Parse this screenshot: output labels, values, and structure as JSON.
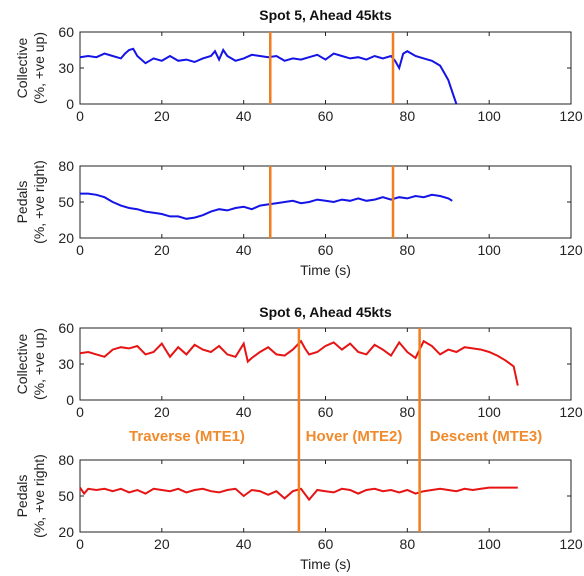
{
  "chart_data": [
    {
      "type": "line",
      "title": "Spot 5, Ahead 45kts",
      "ylabel_lines": [
        "Collective",
        "(%, +ve up)"
      ],
      "xlabel": "",
      "xlim": [
        0,
        120
      ],
      "ylim": [
        0,
        60
      ],
      "xticks": [
        0,
        20,
        40,
        60,
        80,
        100,
        120
      ],
      "yticks": [
        0,
        30,
        60
      ],
      "line_color": "#1414E6",
      "marker_color": "#F07D1E",
      "phase_boundaries": [
        46.5,
        76.5
      ],
      "series": [
        {
          "x": [
            0,
            2,
            4,
            6,
            8,
            10,
            11,
            12,
            13,
            14,
            16,
            18,
            20,
            22,
            24,
            26,
            28,
            30,
            32,
            33,
            34,
            35,
            36,
            38,
            40,
            42,
            44,
            46,
            48,
            50,
            52,
            54,
            56,
            58,
            60,
            62,
            64,
            66,
            68,
            70,
            72,
            74,
            76,
            77,
            78,
            79,
            80,
            82,
            84,
            86,
            88,
            89,
            90,
            91,
            92
          ],
          "y": [
            39,
            40,
            39,
            42,
            40,
            38,
            42,
            45,
            46,
            40,
            34,
            38,
            36,
            40,
            36,
            37,
            35,
            38,
            40,
            44,
            37,
            45,
            40,
            36,
            38,
            41,
            40,
            39,
            40,
            36,
            38,
            37,
            39,
            41,
            37,
            42,
            40,
            38,
            39,
            37,
            40,
            38,
            40,
            36,
            30,
            42,
            44,
            40,
            38,
            36,
            32,
            26,
            20,
            10,
            0
          ]
        }
      ]
    },
    {
      "type": "line",
      "title": "",
      "ylabel_lines": [
        "Pedals",
        "(%, +ve right)"
      ],
      "xlabel": "Time (s)",
      "xlim": [
        0,
        120
      ],
      "ylim": [
        20,
        80
      ],
      "xticks": [
        0,
        20,
        40,
        60,
        80,
        100,
        120
      ],
      "yticks": [
        20,
        50,
        80
      ],
      "line_color": "#1414E6",
      "marker_color": "#F07D1E",
      "phase_boundaries": [
        46.5,
        76.5
      ],
      "series": [
        {
          "x": [
            0,
            2,
            4,
            6,
            8,
            10,
            12,
            14,
            16,
            18,
            20,
            22,
            24,
            26,
            28,
            30,
            32,
            34,
            36,
            38,
            40,
            42,
            44,
            46,
            48,
            50,
            52,
            54,
            56,
            58,
            60,
            62,
            64,
            66,
            68,
            70,
            72,
            74,
            76,
            78,
            80,
            82,
            84,
            86,
            88,
            90,
            91
          ],
          "y": [
            57,
            57,
            56,
            54,
            50,
            47,
            45,
            44,
            42,
            41,
            40,
            38,
            38,
            36,
            37,
            39,
            42,
            44,
            43,
            45,
            46,
            44,
            47,
            48,
            49,
            50,
            51,
            49,
            50,
            52,
            51,
            50,
            52,
            51,
            53,
            51,
            52,
            54,
            52,
            54,
            53,
            55,
            54,
            56,
            55,
            53,
            51
          ]
        }
      ]
    },
    {
      "type": "line",
      "title": "Spot 6, Ahead 45kts",
      "ylabel_lines": [
        "Collective",
        "(%, +ve up)"
      ],
      "xlabel": "",
      "xlim": [
        0,
        120
      ],
      "ylim": [
        0,
        60
      ],
      "xticks": [
        0,
        20,
        40,
        60,
        80,
        100,
        120
      ],
      "yticks": [
        0,
        30,
        60
      ],
      "line_color": "#E61414",
      "marker_color": "#F07D1E",
      "phase_boundaries": [
        53.5,
        83
      ],
      "series": [
        {
          "x": [
            0,
            2,
            4,
            6,
            8,
            10,
            12,
            14,
            16,
            18,
            20,
            22,
            24,
            26,
            28,
            30,
            32,
            34,
            36,
            38,
            40,
            41,
            42,
            44,
            46,
            48,
            50,
            52,
            54,
            55,
            56,
            58,
            60,
            62,
            64,
            66,
            68,
            70,
            72,
            74,
            76,
            78,
            80,
            82,
            84,
            86,
            88,
            90,
            92,
            94,
            96,
            98,
            100,
            102,
            104,
            106,
            107
          ],
          "y": [
            39,
            40,
            38,
            36,
            42,
            44,
            43,
            45,
            38,
            40,
            47,
            36,
            44,
            38,
            46,
            42,
            40,
            45,
            38,
            36,
            47,
            32,
            35,
            40,
            44,
            38,
            37,
            42,
            49,
            43,
            38,
            40,
            45,
            48,
            42,
            47,
            40,
            38,
            46,
            42,
            37,
            48,
            40,
            35,
            49,
            45,
            38,
            42,
            40,
            44,
            43,
            42,
            40,
            37,
            33,
            28,
            12
          ]
        }
      ]
    },
    {
      "type": "line",
      "title": "",
      "ylabel_lines": [
        "Pedals",
        "(%, +ve right)"
      ],
      "xlabel": "Time (s)",
      "xlim": [
        0,
        120
      ],
      "ylim": [
        20,
        80
      ],
      "xticks": [
        0,
        20,
        40,
        60,
        80,
        100,
        120
      ],
      "yticks": [
        20,
        50,
        80
      ],
      "line_color": "#E61414",
      "marker_color": "#F07D1E",
      "phase_boundaries": [
        53.5,
        83
      ],
      "series": [
        {
          "x": [
            0,
            1,
            2,
            4,
            6,
            8,
            10,
            12,
            14,
            16,
            18,
            20,
            22,
            24,
            26,
            28,
            30,
            32,
            34,
            36,
            38,
            40,
            42,
            44,
            46,
            48,
            50,
            52,
            54,
            56,
            58,
            60,
            62,
            64,
            66,
            68,
            70,
            72,
            74,
            76,
            78,
            80,
            82,
            84,
            86,
            88,
            90,
            92,
            94,
            96,
            98,
            100,
            102,
            104,
            106,
            107
          ],
          "y": [
            57,
            52,
            56,
            55,
            56,
            54,
            56,
            53,
            55,
            52,
            56,
            55,
            54,
            56,
            53,
            55,
            56,
            54,
            53,
            55,
            56,
            50,
            55,
            54,
            51,
            54,
            48,
            54,
            56,
            47,
            55,
            54,
            53,
            56,
            55,
            52,
            55,
            56,
            54,
            55,
            53,
            55,
            52,
            54,
            55,
            56,
            55,
            54,
            56,
            55,
            56,
            57,
            57,
            57,
            57,
            57
          ]
        }
      ],
      "phase_labels": [
        "Traverse (MTE1)",
        "Hover (MTE2)",
        "Descent (MTE3)"
      ]
    }
  ]
}
